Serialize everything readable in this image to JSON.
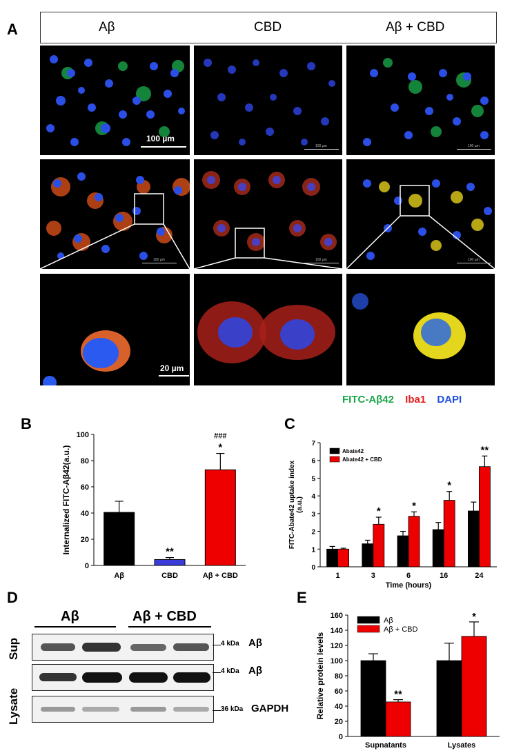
{
  "panel_labels": {
    "A": "A",
    "B": "B",
    "C": "C",
    "D": "D",
    "E": "E"
  },
  "panel_a": {
    "columns": [
      "Aβ",
      "CBD",
      "Aβ + CBD"
    ],
    "scale_top": "100 µm",
    "scale_bottom": "20 µm",
    "tiny_scale": "100 µm",
    "stains": {
      "fitc": "FITC-Aβ42",
      "iba1": "Iba1",
      "dapi": "DAPI"
    },
    "colors": {
      "fitc": "#1aa64a",
      "iba1": "#e02020",
      "dapi": "#1f4fe0"
    }
  },
  "chart_data": [
    {
      "panel": "B",
      "type": "bar",
      "categories": [
        "Aβ",
        "CBD",
        "Aβ + CBD"
      ],
      "values": [
        40.5,
        4.5,
        73
      ],
      "errors": [
        8.5,
        1.5,
        12.5
      ],
      "colors": [
        "#000000",
        "#3b3bd9",
        "#ee0000"
      ],
      "annotations": [
        "",
        "**",
        "*"
      ],
      "annotations2": [
        "",
        "",
        "###"
      ],
      "ylabel": "Internalized FITC-Aβ42(a.u.)",
      "ylim": [
        0,
        100
      ],
      "yticks": [
        0,
        20,
        40,
        60,
        80,
        100
      ]
    },
    {
      "panel": "C",
      "type": "bar",
      "categories": [
        "1",
        "3",
        "6",
        "16",
        "24"
      ],
      "series": [
        {
          "name": "Abate42",
          "values": [
            1.0,
            1.3,
            1.75,
            2.1,
            3.15
          ],
          "errors": [
            0.15,
            0.2,
            0.25,
            0.4,
            0.5
          ],
          "color": "#000000"
        },
        {
          "name": "Abate42 + CBD",
          "values": [
            1.0,
            2.4,
            2.85,
            3.75,
            5.65
          ],
          "errors": [
            0.05,
            0.4,
            0.25,
            0.5,
            0.6
          ],
          "color": "#ee0000"
        }
      ],
      "annotations": [
        "",
        "*",
        "*",
        "*",
        "**"
      ],
      "xlabel": "Time (hours)",
      "ylabel": "FITC-Abate42 uptake index (a.u.)",
      "ylim": [
        0,
        7
      ],
      "yticks": [
        0,
        1,
        2,
        3,
        4,
        5,
        6,
        7
      ]
    },
    {
      "panel": "E",
      "type": "bar",
      "categories": [
        "Supnatants",
        "Lysates"
      ],
      "series": [
        {
          "name": "Aβ",
          "values": [
            100,
            100
          ],
          "errors": [
            9,
            23
          ],
          "color": "#000000"
        },
        {
          "name": "Aβ + CBD",
          "values": [
            45.5,
            132
          ],
          "errors": [
            3,
            19
          ],
          "color": "#ee0000"
        }
      ],
      "annotations": [
        [
          "",
          "**"
        ],
        [
          "",
          "*"
        ]
      ],
      "ylabel": "Relative protein levels",
      "ylim": [
        0,
        160
      ],
      "yticks": [
        0,
        20,
        40,
        60,
        80,
        100,
        120,
        140,
        160
      ]
    }
  ],
  "panel_d": {
    "group_labels": [
      "Aβ",
      "Aβ + CBD"
    ],
    "rows": [
      {
        "label": "Sup",
        "kda": "4 kDa",
        "protein": "Aβ"
      },
      {
        "label": "Lysate",
        "kda": "4 kDa",
        "protein": "Aβ"
      },
      {
        "label": "",
        "kda": "36 kDa",
        "protein": "GAPDH"
      }
    ]
  }
}
